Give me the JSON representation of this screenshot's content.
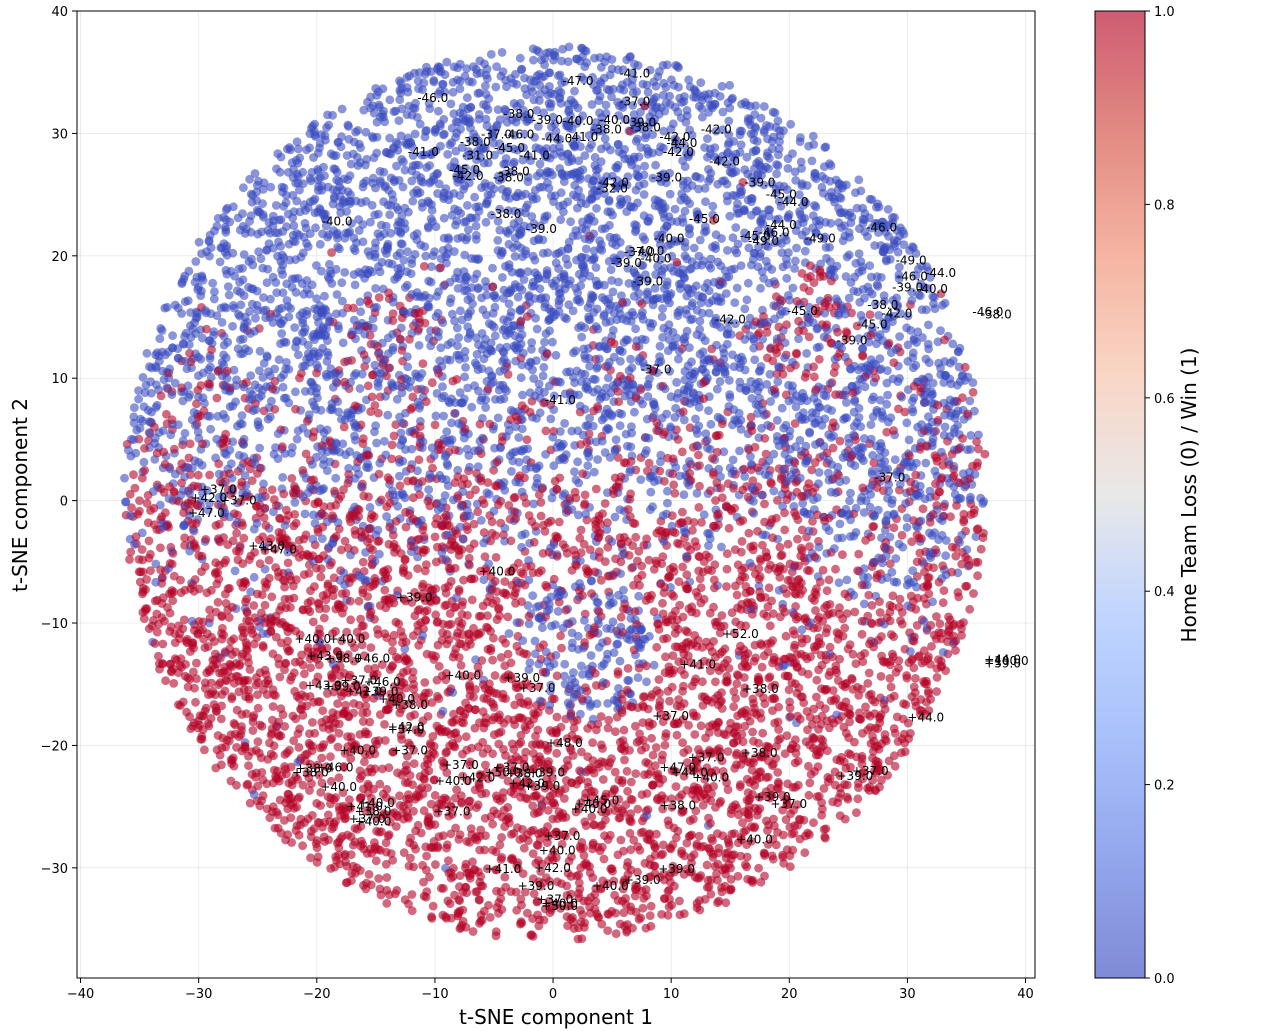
{
  "chart_data": {
    "type": "scatter",
    "title": "",
    "xlabel": "t-SNE component 1",
    "ylabel": "t-SNE component 2",
    "xlim": [
      -40.3,
      40.8
    ],
    "ylim": [
      -39.0,
      40.0
    ],
    "xticks": [
      -40,
      -30,
      -20,
      -10,
      0,
      10,
      20,
      30,
      40
    ],
    "yticks": [
      -30,
      -20,
      -10,
      0,
      10,
      20,
      30,
      40
    ],
    "xtick_labels": [
      "−40",
      "−30",
      "−20",
      "−10",
      "0",
      "10",
      "20",
      "30",
      "40"
    ],
    "ytick_labels": [
      "−30",
      "−20",
      "−10",
      "0",
      "10",
      "20",
      "30",
      "40"
    ],
    "grid": true,
    "point_alpha": 0.6,
    "cloud": {
      "center": [
        0.2,
        0.6
      ],
      "radius": 36.5,
      "approx_points": 26000,
      "description_of_color": "upper half mostly blue (loss), lower half mostly red (win), mixed boundary near y=0"
    },
    "colorbar": {
      "label": "Home Team Loss (0) / Win (1)",
      "colormap": "coolwarm",
      "min_color": "#3b4cc0",
      "mid_color": "#dddddd",
      "max_color": "#b40426",
      "range": [
        0.0,
        1.0
      ],
      "ticks": [
        0.0,
        0.2,
        0.4,
        0.6,
        0.8,
        1.0
      ],
      "tick_labels": [
        "0.0",
        "0.2",
        "0.4",
        "0.6",
        "0.8",
        "1.0"
      ]
    },
    "annotations": [
      {
        "x": -11.5,
        "y": 32.9,
        "text": "-46.0"
      },
      {
        "x": 0.8,
        "y": 34.3,
        "text": "-47.0"
      },
      {
        "x": 5.6,
        "y": 34.9,
        "text": "-41.0"
      },
      {
        "x": 5.6,
        "y": 32.6,
        "text": "-37.0"
      },
      {
        "x": -4.2,
        "y": 31.6,
        "text": "-38.0"
      },
      {
        "x": -1.8,
        "y": 31.1,
        "text": "-39.0"
      },
      {
        "x": 0.8,
        "y": 31.0,
        "text": "-40.0"
      },
      {
        "x": 3.9,
        "y": 31.1,
        "text": "-40.0"
      },
      {
        "x": 6.1,
        "y": 30.9,
        "text": "-39.0"
      },
      {
        "x": 6.5,
        "y": 30.5,
        "text": "-38.0"
      },
      {
        "x": 3.2,
        "y": 30.3,
        "text": "-38.0"
      },
      {
        "x": -1.0,
        "y": 29.6,
        "text": "-44.0"
      },
      {
        "x": 1.2,
        "y": 29.7,
        "text": "-41.0"
      },
      {
        "x": -6.1,
        "y": 29.9,
        "text": "-37.0"
      },
      {
        "x": -4.2,
        "y": 29.9,
        "text": "-46.0"
      },
      {
        "x": -7.9,
        "y": 29.3,
        "text": "-38.0"
      },
      {
        "x": 9.0,
        "y": 29.7,
        "text": "-42.0"
      },
      {
        "x": 9.6,
        "y": 29.2,
        "text": "-44.0"
      },
      {
        "x": 9.3,
        "y": 28.5,
        "text": "-42.0"
      },
      {
        "x": 12.5,
        "y": 30.3,
        "text": "-42.0"
      },
      {
        "x": -12.3,
        "y": 28.5,
        "text": "-41.0"
      },
      {
        "x": -5.0,
        "y": 28.8,
        "text": "-45.0"
      },
      {
        "x": -7.7,
        "y": 28.2,
        "text": "-31.0"
      },
      {
        "x": -2.9,
        "y": 28.2,
        "text": "-41.0"
      },
      {
        "x": 13.2,
        "y": 27.7,
        "text": "-42.0"
      },
      {
        "x": -8.8,
        "y": 27.0,
        "text": "-45.0"
      },
      {
        "x": -4.6,
        "y": 26.9,
        "text": "-38.0"
      },
      {
        "x": -8.5,
        "y": 26.5,
        "text": "-42.0"
      },
      {
        "x": -5.1,
        "y": 26.4,
        "text": "-38.0"
      },
      {
        "x": 8.3,
        "y": 26.4,
        "text": "-39.0"
      },
      {
        "x": 3.8,
        "y": 26.0,
        "text": "-42.0"
      },
      {
        "x": 3.7,
        "y": 25.5,
        "text": "-32.0"
      },
      {
        "x": 16.2,
        "y": 26.0,
        "text": "-39.0"
      },
      {
        "x": 18.0,
        "y": 25.0,
        "text": "-45.0"
      },
      {
        "x": 19.0,
        "y": 24.4,
        "text": "-44.0"
      },
      {
        "x": -19.6,
        "y": 22.8,
        "text": "-40.0"
      },
      {
        "x": -5.3,
        "y": 23.4,
        "text": "-38.0"
      },
      {
        "x": -2.3,
        "y": 22.2,
        "text": "-39.0"
      },
      {
        "x": 11.5,
        "y": 23.0,
        "text": "-45.0"
      },
      {
        "x": 18.0,
        "y": 22.5,
        "text": "-44.0"
      },
      {
        "x": 17.4,
        "y": 21.9,
        "text": "-46.0"
      },
      {
        "x": 15.8,
        "y": 21.6,
        "text": "-45.0"
      },
      {
        "x": 16.5,
        "y": 21.2,
        "text": "-49.0"
      },
      {
        "x": 21.3,
        "y": 21.4,
        "text": "-49.0"
      },
      {
        "x": 26.5,
        "y": 22.3,
        "text": "-46.0"
      },
      {
        "x": 8.5,
        "y": 21.4,
        "text": "-40.0"
      },
      {
        "x": 6.8,
        "y": 20.4,
        "text": "-40.0"
      },
      {
        "x": 6.0,
        "y": 20.3,
        "text": "-37.0"
      },
      {
        "x": 7.4,
        "y": 19.8,
        "text": "-40.0"
      },
      {
        "x": 4.9,
        "y": 19.4,
        "text": "-39.0"
      },
      {
        "x": 6.7,
        "y": 17.9,
        "text": "-39.0"
      },
      {
        "x": 29.0,
        "y": 19.6,
        "text": "-49.0"
      },
      {
        "x": 31.5,
        "y": 18.6,
        "text": "-44.0"
      },
      {
        "x": 29.1,
        "y": 18.3,
        "text": "-46.0"
      },
      {
        "x": 28.7,
        "y": 17.4,
        "text": "-39.0"
      },
      {
        "x": 30.8,
        "y": 17.3,
        "text": "-40.0"
      },
      {
        "x": 35.5,
        "y": 15.4,
        "text": "-46.0"
      },
      {
        "x": 36.2,
        "y": 15.2,
        "text": "-38.0"
      },
      {
        "x": 26.6,
        "y": 16.0,
        "text": "-38.0"
      },
      {
        "x": 19.8,
        "y": 15.5,
        "text": "-45.0"
      },
      {
        "x": 27.8,
        "y": 15.3,
        "text": "-42.0"
      },
      {
        "x": 25.7,
        "y": 14.4,
        "text": "-45.0"
      },
      {
        "x": 13.7,
        "y": 14.8,
        "text": "-42.0"
      },
      {
        "x": 24.0,
        "y": 13.1,
        "text": "-39.0"
      },
      {
        "x": 7.4,
        "y": 10.7,
        "text": "-37.0"
      },
      {
        "x": -0.7,
        "y": 8.2,
        "text": "-41.0"
      },
      {
        "x": 27.2,
        "y": 1.9,
        "text": "-37.0"
      },
      {
        "x": -29.9,
        "y": 0.9,
        "text": "+37.0"
      },
      {
        "x": -30.7,
        "y": 0.2,
        "text": "+42.0"
      },
      {
        "x": -28.2,
        "y": 0.0,
        "text": "+37.0"
      },
      {
        "x": -30.9,
        "y": -1.0,
        "text": "+47.0"
      },
      {
        "x": -25.8,
        "y": -3.7,
        "text": "+43.0"
      },
      {
        "x": -24.8,
        "y": -4.0,
        "text": "+47.0"
      },
      {
        "x": -6.3,
        "y": -5.8,
        "text": "+40.0"
      },
      {
        "x": -13.3,
        "y": -7.9,
        "text": "+39.0"
      },
      {
        "x": -21.9,
        "y": -11.3,
        "text": "+40.0"
      },
      {
        "x": -19.0,
        "y": -11.3,
        "text": "+40.0"
      },
      {
        "x": 14.3,
        "y": -10.9,
        "text": "+52.0"
      },
      {
        "x": -20.9,
        "y": -12.7,
        "text": "+43.0"
      },
      {
        "x": -19.3,
        "y": -12.9,
        "text": "+38.0"
      },
      {
        "x": -16.9,
        "y": -12.9,
        "text": "+46.0"
      },
      {
        "x": 10.7,
        "y": -13.4,
        "text": "+41.0"
      },
      {
        "x": -9.2,
        "y": -14.3,
        "text": "+40.0"
      },
      {
        "x": -4.2,
        "y": -14.5,
        "text": "+39.0"
      },
      {
        "x": -2.9,
        "y": -15.3,
        "text": "+37.0"
      },
      {
        "x": -18.0,
        "y": -14.7,
        "text": "+37.0"
      },
      {
        "x": -16.0,
        "y": -14.8,
        "text": "+46.0"
      },
      {
        "x": -21.0,
        "y": -15.1,
        "text": "+43.0"
      },
      {
        "x": -19.4,
        "y": -15.2,
        "text": "+39.0"
      },
      {
        "x": -17.6,
        "y": -15.6,
        "text": "+42.0"
      },
      {
        "x": -14.8,
        "y": -16.2,
        "text": "+40.0"
      },
      {
        "x": -16.2,
        "y": -15.6,
        "text": "+39.0"
      },
      {
        "x": -13.7,
        "y": -16.7,
        "text": "+38.0"
      },
      {
        "x": 16.0,
        "y": -15.4,
        "text": "+38.0"
      },
      {
        "x": 8.4,
        "y": -17.6,
        "text": "+37.0"
      },
      {
        "x": 30.0,
        "y": -17.7,
        "text": "+44.0"
      },
      {
        "x": -14.0,
        "y": -18.5,
        "text": "+42.0"
      },
      {
        "x": -14.0,
        "y": -18.7,
        "text": "+37.0"
      },
      {
        "x": -0.6,
        "y": -19.8,
        "text": "+48.0"
      },
      {
        "x": -18.1,
        "y": -20.4,
        "text": "+40.0"
      },
      {
        "x": -13.7,
        "y": -20.4,
        "text": "+37.0"
      },
      {
        "x": 11.4,
        "y": -21.0,
        "text": "+37.0"
      },
      {
        "x": 15.9,
        "y": -20.6,
        "text": "+38.0"
      },
      {
        "x": -9.4,
        "y": -21.6,
        "text": "+37.0"
      },
      {
        "x": -5.1,
        "y": -21.8,
        "text": "+37.0"
      },
      {
        "x": 9.0,
        "y": -21.8,
        "text": "+47.0"
      },
      {
        "x": 10.0,
        "y": -22.2,
        "text": "+44.0"
      },
      {
        "x": 25.3,
        "y": -22.1,
        "text": "+37.0"
      },
      {
        "x": 24.0,
        "y": -22.5,
        "text": "+39.0"
      },
      {
        "x": -20.0,
        "y": -21.8,
        "text": "+46.0"
      },
      {
        "x": -21.8,
        "y": -21.9,
        "text": "+38.0"
      },
      {
        "x": -22.1,
        "y": -22.2,
        "text": "+38.0"
      },
      {
        "x": -5.8,
        "y": -22.2,
        "text": "+50.0"
      },
      {
        "x": -4.0,
        "y": -22.3,
        "text": "+38.0"
      },
      {
        "x": -2.1,
        "y": -22.2,
        "text": "+39.0"
      },
      {
        "x": -8.0,
        "y": -22.6,
        "text": "+42.0"
      },
      {
        "x": -10.0,
        "y": -22.9,
        "text": "+40.0"
      },
      {
        "x": -3.8,
        "y": -23.1,
        "text": "+42.0"
      },
      {
        "x": -2.5,
        "y": -23.3,
        "text": "+39.0"
      },
      {
        "x": 11.8,
        "y": -22.6,
        "text": "+40.0"
      },
      {
        "x": -19.7,
        "y": -23.4,
        "text": "+40.0"
      },
      {
        "x": 17.0,
        "y": -24.2,
        "text": "+39.0"
      },
      {
        "x": 18.4,
        "y": -24.8,
        "text": "+37.0"
      },
      {
        "x": 2.5,
        "y": -24.5,
        "text": "+45.0"
      },
      {
        "x": 1.8,
        "y": -24.8,
        "text": "+40.0"
      },
      {
        "x": 1.5,
        "y": -25.2,
        "text": "+40.0"
      },
      {
        "x": 9.0,
        "y": -24.9,
        "text": "+38.0"
      },
      {
        "x": -16.5,
        "y": -24.7,
        "text": "+40.0"
      },
      {
        "x": -17.5,
        "y": -25.0,
        "text": "+41.0"
      },
      {
        "x": -10.1,
        "y": -25.4,
        "text": "+37.0"
      },
      {
        "x": -16.8,
        "y": -25.4,
        "text": "+38.0"
      },
      {
        "x": -17.3,
        "y": -26.0,
        "text": "+37.0"
      },
      {
        "x": -16.8,
        "y": -26.2,
        "text": "+40.0"
      },
      {
        "x": -0.8,
        "y": -27.4,
        "text": "+37.0"
      },
      {
        "x": 15.5,
        "y": -27.7,
        "text": "+40.0"
      },
      {
        "x": -1.2,
        "y": -28.6,
        "text": "+40.0"
      },
      {
        "x": 8.9,
        "y": -30.1,
        "text": "+39.0"
      },
      {
        "x": -5.8,
        "y": -30.1,
        "text": "+41.0"
      },
      {
        "x": -1.6,
        "y": -30.0,
        "text": "+42.0"
      },
      {
        "x": 6.0,
        "y": -31.0,
        "text": "+39.0"
      },
      {
        "x": 3.3,
        "y": -31.5,
        "text": "+40.0"
      },
      {
        "x": -3.0,
        "y": -31.5,
        "text": "+39.0"
      },
      {
        "x": -1.4,
        "y": -32.6,
        "text": "+37.0"
      },
      {
        "x": -1.0,
        "y": -32.9,
        "text": "+40.0"
      },
      {
        "x": -1.0,
        "y": -33.1,
        "text": "+50.0"
      },
      {
        "x": 36.5,
        "y": -13.1,
        "text": "+100.0"
      },
      {
        "x": 36.5,
        "y": -13.3,
        "text": "+59.0"
      },
      {
        "x": 36.5,
        "y": -13.0,
        "text": "+44.0"
      }
    ]
  }
}
